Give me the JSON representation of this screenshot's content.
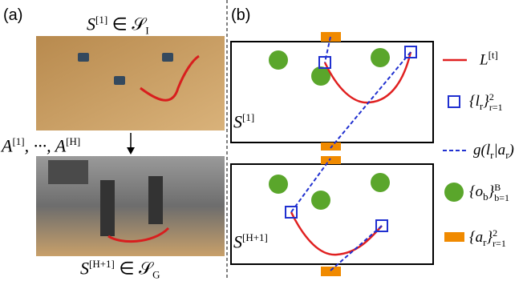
{
  "panel_a": {
    "label": "(a)",
    "top_caption": {
      "base": "S",
      "sup": "[1]",
      "rel": "∈ 𝒮",
      "sub": "I"
    },
    "actions": {
      "base": "A",
      "sup": "[1]",
      "mid": ", ···, A",
      "sup2": "[H]"
    },
    "bottom_caption": {
      "base": "S",
      "sup": "[H+1]",
      "rel": "∈ 𝒮",
      "sub": "G"
    }
  },
  "panel_b": {
    "label": "(b)",
    "state_start": {
      "base": "S",
      "sup": "[1]"
    },
    "state_goal": {
      "base": "S",
      "sup": "[H+1]"
    },
    "legend": {
      "rope": {
        "base": "L",
        "sup": "[t]"
      },
      "grasp_points": {
        "open": "{l",
        "sub": "r",
        "close": "}",
        "sup": "2",
        "lower": "r=1"
      },
      "mapping": {
        "text": "g(l",
        "sub": "r",
        "mid": "|a",
        "sub2": "r",
        "close": ")"
      },
      "obstacles": {
        "open": "{o",
        "sub": "b",
        "close": "}",
        "sup": "B",
        "lower": "b=1"
      },
      "robot_bases": {
        "open": "{a",
        "sub": "r",
        "close": "}",
        "sup": "2",
        "lower": "r=1"
      }
    }
  }
}
